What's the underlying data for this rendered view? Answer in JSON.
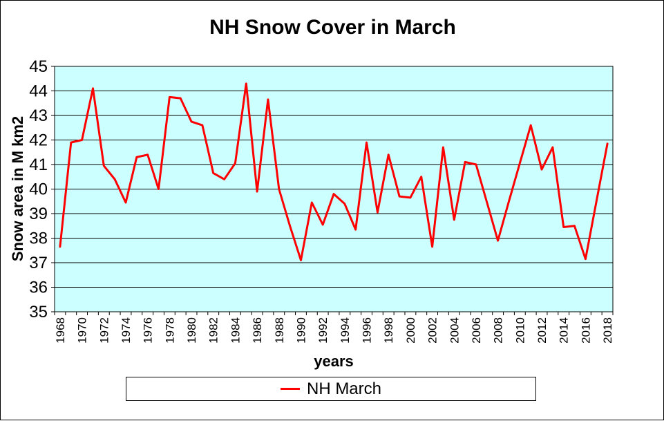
{
  "chart_data": {
    "type": "line",
    "title": "NH Snow Cover in March",
    "xlabel": "years",
    "ylabel": "Snow area in M km2",
    "legend_position": "bottom",
    "grid": "horizontal-major",
    "ylim": [
      35,
      45
    ],
    "y_ticks": [
      35,
      36,
      37,
      38,
      39,
      40,
      41,
      42,
      43,
      44,
      45
    ],
    "x_tick_label_every": 2,
    "x": [
      1968,
      1969,
      1970,
      1971,
      1972,
      1973,
      1974,
      1975,
      1976,
      1977,
      1978,
      1979,
      1980,
      1981,
      1982,
      1983,
      1984,
      1985,
      1986,
      1987,
      1988,
      1989,
      1990,
      1991,
      1992,
      1993,
      1994,
      1995,
      1996,
      1997,
      1998,
      1999,
      2000,
      2001,
      2002,
      2003,
      2004,
      2005,
      2006,
      2007,
      2008,
      2009,
      2010,
      2011,
      2012,
      2013,
      2014,
      2015,
      2016,
      2017,
      2018
    ],
    "series": [
      {
        "name": "NH March",
        "values": [
          37.65,
          41.9,
          42.0,
          44.1,
          40.95,
          40.4,
          39.45,
          41.3,
          41.4,
          40.0,
          43.75,
          43.7,
          42.75,
          42.6,
          40.65,
          40.4,
          41.05,
          44.3,
          39.9,
          43.65,
          40.0,
          38.5,
          37.1,
          39.45,
          38.55,
          39.8,
          39.4,
          38.35,
          41.9,
          39.05,
          41.4,
          39.7,
          39.65,
          40.5,
          37.65,
          41.7,
          38.75,
          41.1,
          41.0,
          39.45,
          37.9,
          39.5,
          41.05,
          42.6,
          40.8,
          41.7,
          38.45,
          38.5,
          37.15,
          39.5,
          41.85
        ]
      }
    ],
    "colors": {
      "line": "#FF0000",
      "plot_bg": "#CCFFFF",
      "grid": "#000000",
      "text": "#000000"
    }
  }
}
